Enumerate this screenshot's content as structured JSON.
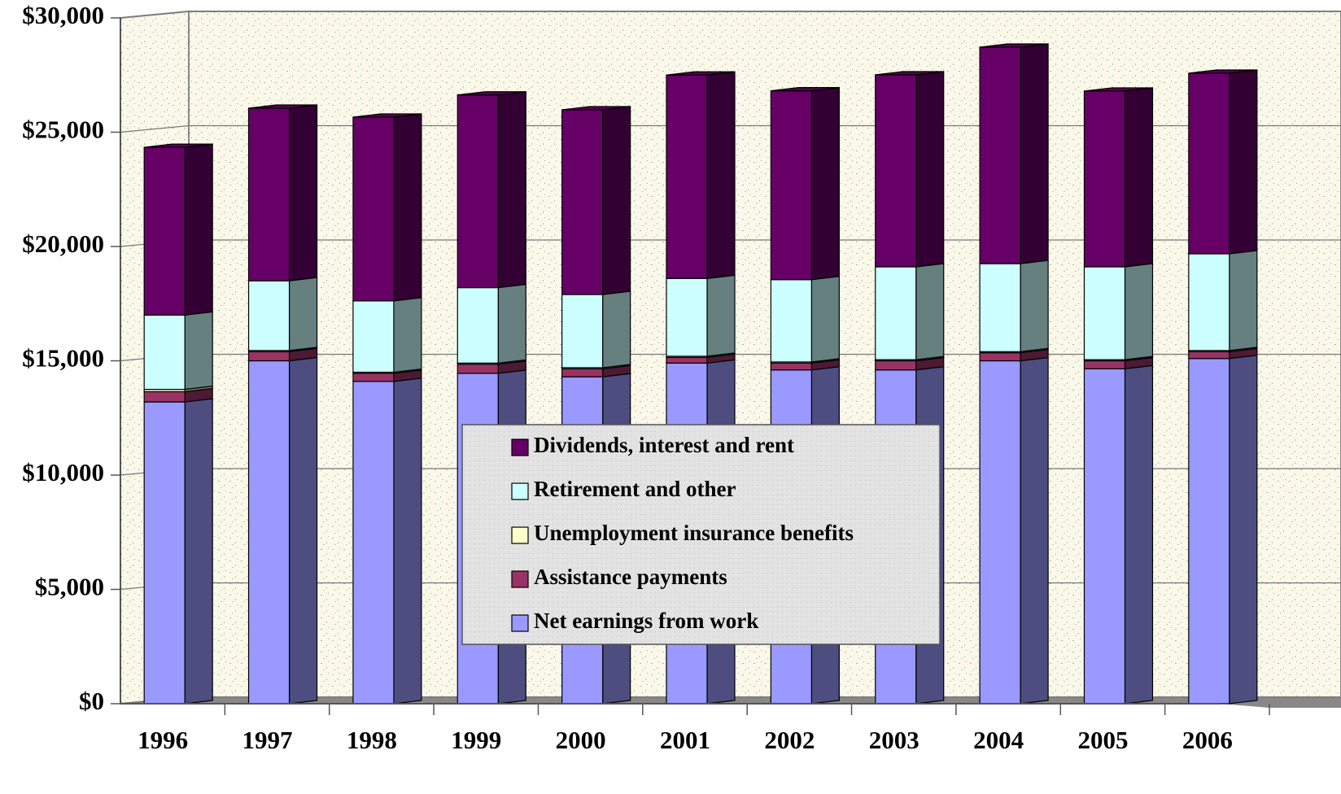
{
  "chart_data": {
    "type": "bar",
    "stacked": true,
    "categories": [
      "1996",
      "1997",
      "1998",
      "1999",
      "2000",
      "2001",
      "2002",
      "2003",
      "2004",
      "2005",
      "2006"
    ],
    "series": [
      {
        "name": "Net earnings from work",
        "color": "#9999ff",
        "values": [
          13200,
          15000,
          14100,
          14450,
          14300,
          14900,
          14600,
          14600,
          15000,
          14650,
          15100
        ]
      },
      {
        "name": "Assistance payments",
        "color": "#993366",
        "values": [
          450,
          400,
          350,
          400,
          350,
          250,
          300,
          400,
          350,
          350,
          300
        ]
      },
      {
        "name": "Unemployment insurance benefits",
        "color": "#ffffcc",
        "values": [
          100,
          50,
          50,
          50,
          50,
          50,
          50,
          50,
          50,
          50,
          50
        ]
      },
      {
        "name": "Retirement and other",
        "color": "#ccffff",
        "values": [
          3250,
          3050,
          3120,
          3300,
          3200,
          3400,
          3600,
          4060,
          3850,
          4060,
          4230
        ]
      },
      {
        "name": "Dividends, interest and rent",
        "color": "#660066",
        "values": [
          7340,
          7550,
          8040,
          8430,
          8080,
          8900,
          8260,
          8400,
          9470,
          7690,
          7900
        ]
      }
    ],
    "ylim": [
      0,
      30000
    ],
    "yticks": [
      {
        "value": 0,
        "label": "$0"
      },
      {
        "value": 5000,
        "label": "$5,000"
      },
      {
        "value": 10000,
        "label": "$10,000"
      },
      {
        "value": 15000,
        "label": "$15,000"
      },
      {
        "value": 20000,
        "label": "$20,000"
      },
      {
        "value": 25000,
        "label": "$25,000"
      },
      {
        "value": 30000,
        "label": "$30,000"
      }
    ],
    "grid": true
  }
}
